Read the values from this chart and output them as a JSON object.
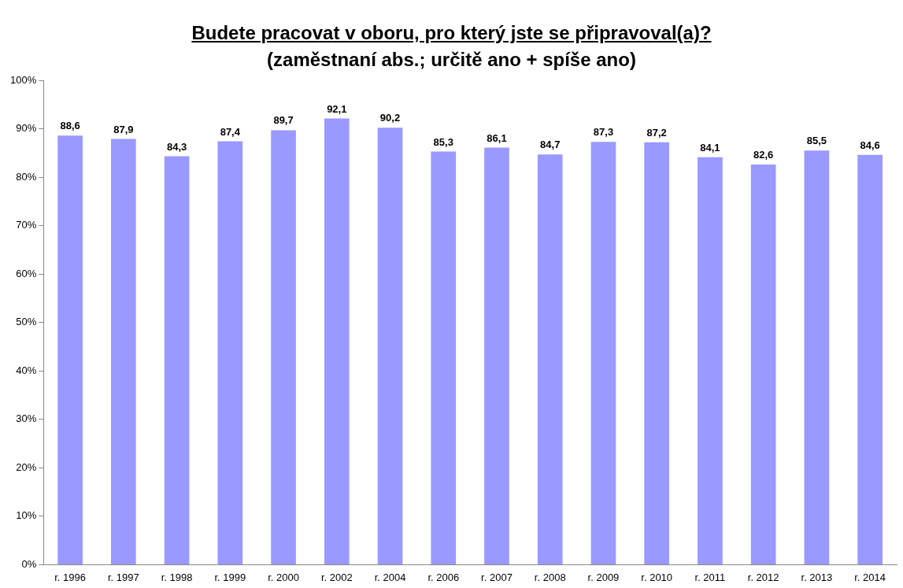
{
  "chart_data": {
    "type": "bar",
    "title": "Budete pracovat v oboru, pro který jste se připravoval(a)?",
    "subtitle": "(zaměstnaní abs.; určitě ano + spíše ano)",
    "categories": [
      "r. 1996",
      "r. 1997",
      "r. 1998",
      "r. 1999",
      "r. 2000",
      "r. 2002",
      "r. 2004",
      "r. 2006",
      "r. 2007",
      "r. 2008",
      "r. 2009",
      "r. 2010",
      "r. 2011",
      "r. 2012",
      "r. 2013",
      "r. 2014"
    ],
    "values": [
      88.6,
      87.9,
      84.3,
      87.4,
      89.7,
      92.1,
      90.2,
      85.3,
      86.1,
      84.7,
      87.3,
      87.2,
      84.1,
      82.6,
      85.5,
      84.6
    ],
    "value_labels": [
      "88,6",
      "87,9",
      "84,3",
      "87,4",
      "89,7",
      "92,1",
      "90,2",
      "85,3",
      "86,1",
      "84,7",
      "87,3",
      "87,2",
      "84,1",
      "82,6",
      "85,5",
      "84,6"
    ],
    "color": "#9999ff",
    "ylim": [
      0,
      100
    ],
    "yticks": [
      {
        "value": 0,
        "label": "0%"
      },
      {
        "value": 10,
        "label": "10%"
      },
      {
        "value": 20,
        "label": "20%"
      },
      {
        "value": 30,
        "label": "30%"
      },
      {
        "value": 40,
        "label": "40%"
      },
      {
        "value": 50,
        "label": "50%"
      },
      {
        "value": 60,
        "label": "60%"
      },
      {
        "value": 70,
        "label": "70%"
      },
      {
        "value": 80,
        "label": "80%"
      },
      {
        "value": 90,
        "label": "90%"
      },
      {
        "value": 100,
        "label": "100%"
      }
    ],
    "grid": false,
    "legend": false
  }
}
